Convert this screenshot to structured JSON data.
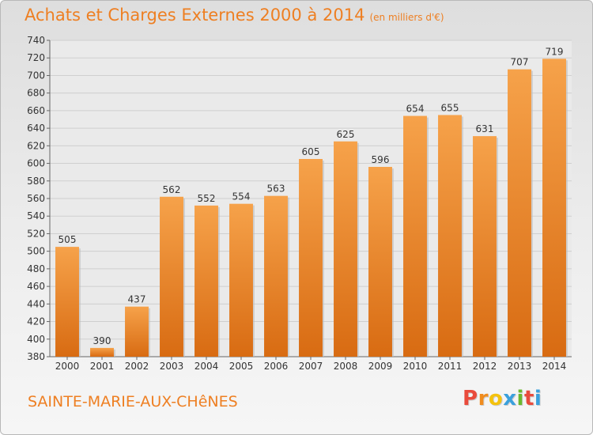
{
  "title": "Achats et Charges Externes 2000 à 2014",
  "subtitle": "(en milliers d'€)",
  "commune": "SAINTE-MARIE-AUX-CHêNES",
  "logo": {
    "letters": [
      "P",
      "r",
      "o",
      "x",
      "i",
      "t",
      "i"
    ],
    "colors": [
      "#e94b3c",
      "#f08c1e",
      "#f4c20d",
      "#3aa0dc",
      "#6bb82d",
      "#e94b3c",
      "#3aa0dc"
    ]
  },
  "colors": {
    "accent": "#ee7f22",
    "bar_top": "#f6a24a",
    "bar_bottom": "#d86b12"
  },
  "chart_data": {
    "type": "bar",
    "title": "Achats et Charges Externes 2000 à 2014",
    "subtitle": "(en milliers d'€)",
    "categories": [
      "2000",
      "2001",
      "2002",
      "2003",
      "2004",
      "2005",
      "2006",
      "2007",
      "2008",
      "2009",
      "2010",
      "2011",
      "2012",
      "2013",
      "2014"
    ],
    "values": [
      505,
      390,
      437,
      562,
      552,
      554,
      563,
      605,
      625,
      596,
      654,
      655,
      631,
      707,
      719
    ],
    "ylim": [
      380,
      740
    ],
    "yticks": [
      380,
      400,
      420,
      440,
      460,
      480,
      500,
      520,
      540,
      560,
      580,
      600,
      620,
      640,
      660,
      680,
      700,
      720,
      740
    ],
    "grid": true,
    "data_labels": true
  }
}
